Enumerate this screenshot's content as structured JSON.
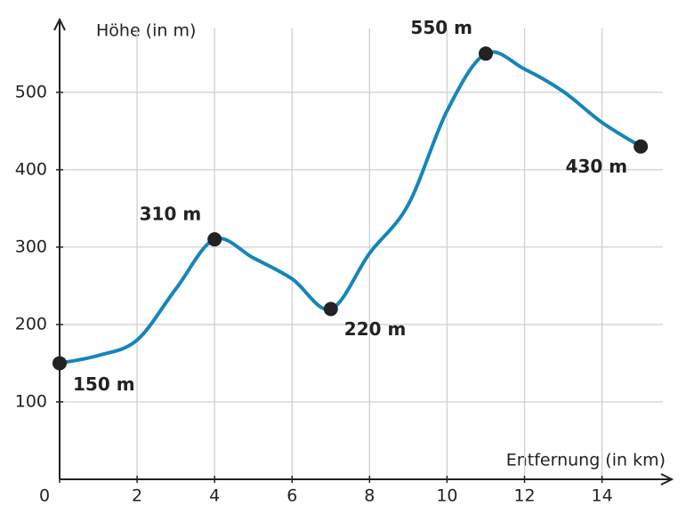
{
  "chart_data": {
    "type": "line",
    "y_label": "Höhe (in m)",
    "x_label": "Entfernung (in km)",
    "xlim": [
      0,
      15.8
    ],
    "ylim": [
      0,
      594
    ],
    "xticks": [
      0,
      2,
      4,
      6,
      8,
      10,
      12,
      14
    ],
    "yticks": [
      100,
      200,
      300,
      400,
      500
    ],
    "grid": true,
    "series": [
      {
        "color": "#1486b9",
        "x": [
          0,
          1,
          2,
          3,
          4,
          5,
          6,
          7,
          8,
          9,
          10,
          11,
          12,
          13,
          14,
          15
        ],
        "values": [
          150,
          160,
          180,
          246,
          310,
          286,
          259,
          220,
          292,
          355,
          476,
          550,
          530,
          501,
          461,
          430
        ]
      }
    ],
    "points": {
      "color": "#222222",
      "x": [
        0,
        4,
        7,
        11,
        15
      ],
      "values": [
        150,
        310,
        220,
        550,
        430
      ],
      "value_labels": [
        "150 m",
        "310 m",
        "220 m",
        "550 m",
        "430 m"
      ]
    }
  }
}
